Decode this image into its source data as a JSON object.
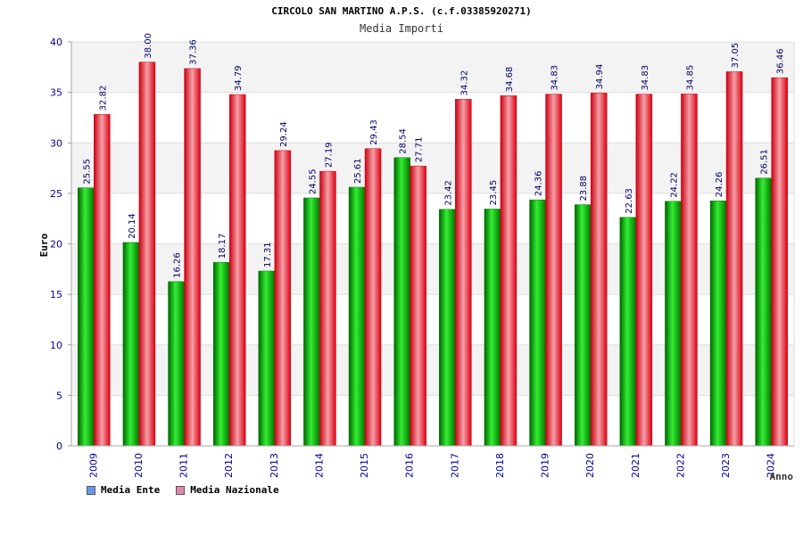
{
  "chart_data": {
    "type": "bar",
    "title": "CIRCOLO SAN MARTINO A.P.S. (c.f.03385920271)",
    "subtitle": "Media Importi",
    "ylabel": "Euro",
    "xlabel": "Anno",
    "ylim": [
      0,
      40
    ],
    "yticks": [
      0,
      5,
      10,
      15,
      20,
      25,
      30,
      35,
      40
    ],
    "grid": true,
    "legend_position": "bottom-left",
    "categories": [
      "2009",
      "2010",
      "2011",
      "2012",
      "2013",
      "2014",
      "2015",
      "2016",
      "2017",
      "2018",
      "2019",
      "2020",
      "2021",
      "2022",
      "2023",
      "2024"
    ],
    "series": [
      {
        "name": "Media Ente",
        "color": "#00aa00",
        "legend_color": "#6699ee",
        "values": [
          25.55,
          20.14,
          16.26,
          18.17,
          17.31,
          24.55,
          25.61,
          28.54,
          23.42,
          23.45,
          24.36,
          23.88,
          22.63,
          24.22,
          24.26,
          26.51
        ],
        "labels": [
          "25.55",
          "20.14",
          "16.26",
          "18.17",
          "17.31",
          "24.55",
          "25.61",
          "28.54",
          "23.42",
          "23.45",
          "24.36",
          "23.88",
          "22.63",
          "24.22",
          "24.26",
          "26.51"
        ]
      },
      {
        "name": "Media Nazionale",
        "color": "#ee1122",
        "legend_color": "#dd88aa",
        "values": [
          32.82,
          38.0,
          37.36,
          34.79,
          29.24,
          27.19,
          29.43,
          27.71,
          34.32,
          34.68,
          34.83,
          34.94,
          34.83,
          34.85,
          37.05,
          36.46
        ],
        "labels": [
          "32.82",
          "38.00",
          "37.36",
          "34.79",
          "29.24",
          "27.19",
          "29.43",
          "27.71",
          "34.32",
          "34.68",
          "34.83",
          "34.94",
          "34.83",
          "34.85",
          "37.05",
          "36.46"
        ]
      }
    ]
  }
}
